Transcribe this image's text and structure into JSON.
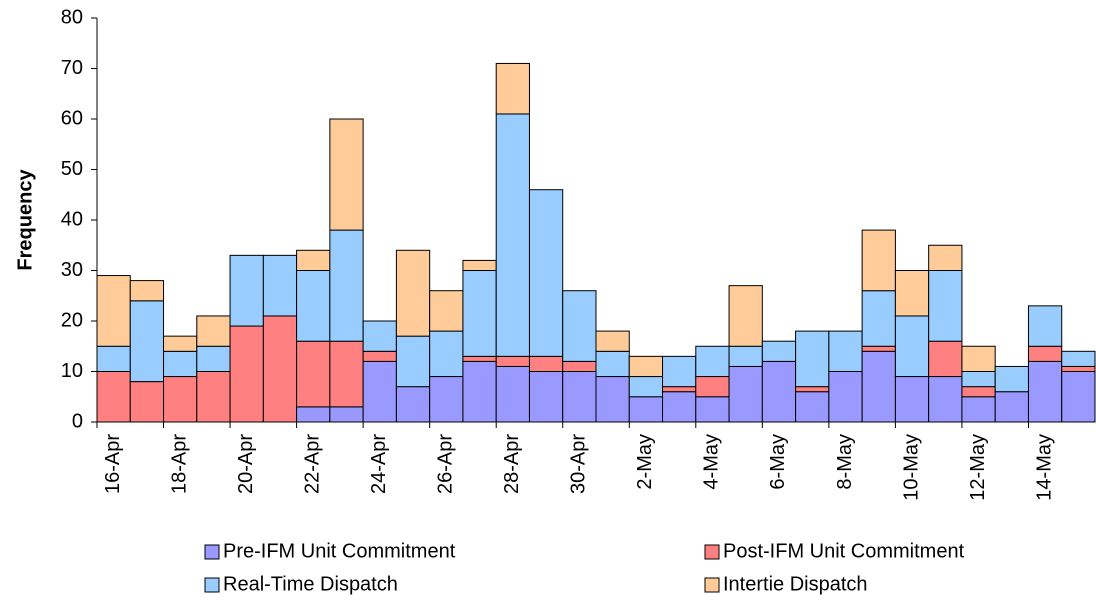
{
  "chart_data": {
    "type": "stacked_bar",
    "y_label": "Frequency",
    "categories": [
      "16-Apr",
      null,
      "18-Apr",
      null,
      "20-Apr",
      null,
      "22-Apr",
      null,
      "24-Apr",
      null,
      "26-Apr",
      null,
      "28-Apr",
      null,
      "30-Apr",
      null,
      "2-May",
      null,
      "4-May",
      null,
      "6-May",
      null,
      "8-May",
      null,
      "10-May",
      null,
      "12-May",
      null,
      "14-May",
      null
    ],
    "series": [
      {
        "name": "Pre-IFM Unit Commitment",
        "color": "#9999ff",
        "values": [
          0,
          0,
          0,
          0,
          0,
          0,
          3,
          3,
          12,
          7,
          9,
          12,
          11,
          10,
          10,
          9,
          5,
          6,
          5,
          11,
          12,
          6,
          10,
          14,
          9,
          9,
          5,
          6,
          12,
          10
        ]
      },
      {
        "name": "Post-IFM Unit Commitment",
        "color": "#ff8080",
        "values": [
          10,
          8,
          9,
          10,
          19,
          21,
          13,
          13,
          2,
          0,
          0,
          1,
          2,
          3,
          2,
          0,
          0,
          1,
          4,
          0,
          0,
          1,
          0,
          1,
          0,
          7,
          2,
          0,
          3,
          1
        ]
      },
      {
        "name": "Real-Time Dispatch",
        "color": "#99ccff",
        "values": [
          5,
          16,
          5,
          5,
          14,
          12,
          14,
          22,
          6,
          10,
          9,
          17,
          48,
          33,
          14,
          5,
          4,
          6,
          6,
          4,
          4,
          11,
          8,
          11,
          12,
          14,
          3,
          5,
          8,
          3
        ]
      },
      {
        "name": "Intertie Dispatch",
        "color": "#ffcc99",
        "values": [
          14,
          4,
          3,
          6,
          0,
          0,
          4,
          22,
          0,
          17,
          8,
          2,
          10,
          0,
          0,
          4,
          4,
          0,
          0,
          12,
          0,
          0,
          0,
          12,
          9,
          5,
          5,
          0,
          0,
          0
        ]
      }
    ],
    "ylim": [
      0,
      80
    ],
    "yticks": [
      0,
      10,
      20,
      30,
      40,
      50,
      60,
      70,
      80
    ]
  }
}
